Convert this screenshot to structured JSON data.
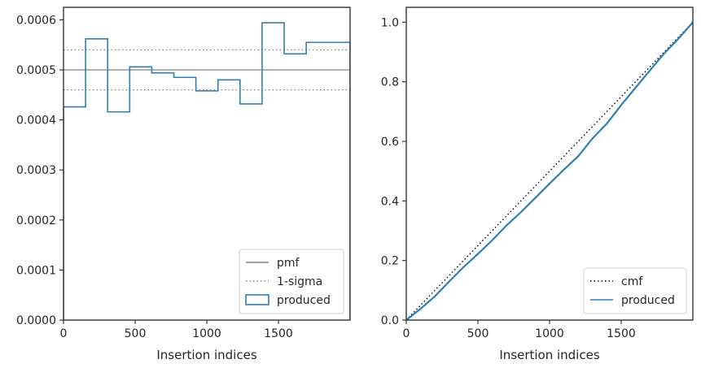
{
  "chart_data": [
    {
      "type": "step",
      "xlabel": "Insertion indices",
      "ylabel": "",
      "xlim": [
        0,
        2000
      ],
      "ylim": [
        0,
        0.000625
      ],
      "xticks": [
        0,
        500,
        1000,
        1500
      ],
      "yticks": [
        0.0,
        0.0001,
        0.0002,
        0.0003,
        0.0004,
        0.0005,
        0.0006
      ],
      "ytick_labels": [
        "0.0000",
        "0.0001",
        "0.0002",
        "0.0003",
        "0.0004",
        "0.0005",
        "0.0006"
      ],
      "grid": false,
      "legend_position": "lower-right",
      "lines": [
        {
          "name": "pmf",
          "y": 0.0005,
          "color": "#808080",
          "style": "solid"
        },
        {
          "name": "1-sigma",
          "y": 0.00054,
          "color": "#808080",
          "style": "dotted"
        },
        {
          "name": "1-sigma",
          "y": 0.00046,
          "color": "#808080",
          "style": "dotted"
        }
      ],
      "series": [
        {
          "name": "produced",
          "color": "#2f7fb5",
          "bin_edges": [
            0,
            154,
            308,
            462,
            616,
            770,
            924,
            1078,
            1232,
            1386,
            1540,
            1694,
            2000
          ],
          "values": [
            0.000426,
            0.000562,
            0.000416,
            0.000506,
            0.000494,
            0.000485,
            0.000458,
            0.00048,
            0.000432,
            0.000594,
            0.000532,
            0.000555
          ]
        }
      ],
      "legend": [
        "pmf",
        "1-sigma",
        "produced"
      ]
    },
    {
      "type": "line",
      "xlabel": "Insertion indices",
      "ylabel": "",
      "xlim": [
        0,
        2000
      ],
      "ylim": [
        0,
        1.05
      ],
      "xticks": [
        0,
        500,
        1000,
        1500
      ],
      "yticks": [
        0.0,
        0.2,
        0.4,
        0.6,
        0.8,
        1.0
      ],
      "ytick_labels": [
        "0.0",
        "0.2",
        "0.4",
        "0.6",
        "0.8",
        "1.0"
      ],
      "grid": false,
      "legend_position": "lower-right",
      "series": [
        {
          "name": "cmf",
          "color": "#000000",
          "style": "dotted",
          "x": [
            0,
            2000
          ],
          "y": [
            0,
            1
          ]
        },
        {
          "name": "produced",
          "color": "#2f7fb5",
          "style": "solid",
          "x": [
            0,
            100,
            200,
            300,
            400,
            500,
            600,
            700,
            800,
            900,
            1000,
            1100,
            1200,
            1250,
            1300,
            1400,
            1500,
            1600,
            1700,
            1800,
            1900,
            2000
          ],
          "y": [
            0,
            0.038,
            0.08,
            0.13,
            0.178,
            0.222,
            0.268,
            0.318,
            0.362,
            0.41,
            0.458,
            0.505,
            0.55,
            0.58,
            0.61,
            0.66,
            0.722,
            0.78,
            0.838,
            0.895,
            0.945,
            1.0
          ]
        }
      ],
      "legend": [
        "cmf",
        "produced"
      ]
    }
  ]
}
